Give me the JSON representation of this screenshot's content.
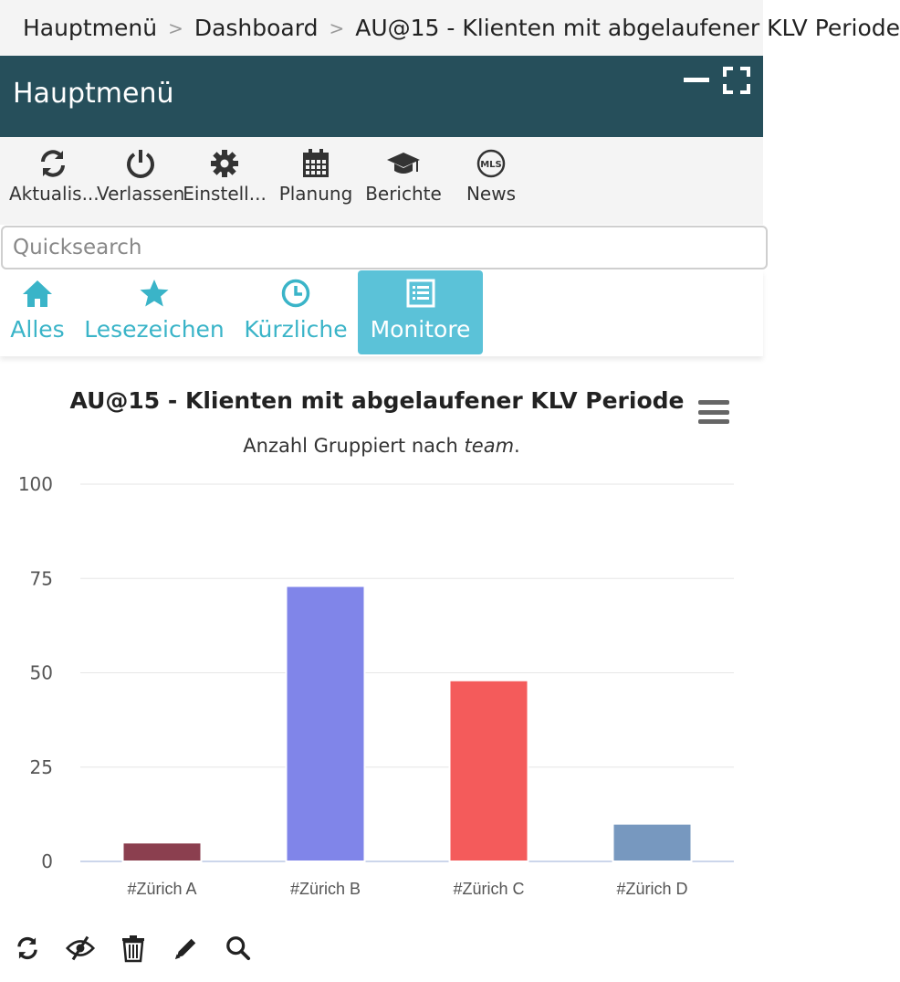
{
  "breadcrumb": {
    "items": [
      "Hauptmenü",
      "Dashboard",
      "AU@15 - Klienten mit abgelaufener KLV Periode"
    ],
    "separator": ">"
  },
  "header": {
    "title": "Hauptmenü"
  },
  "toolbar": {
    "items": [
      {
        "label": "Aktualis...",
        "icon": "refresh-icon"
      },
      {
        "label": "Verlassen",
        "icon": "power-icon"
      },
      {
        "label": "Einstell...",
        "icon": "gear-icon"
      },
      {
        "label": "Planung",
        "icon": "calendar-icon"
      },
      {
        "label": "Berichte",
        "icon": "graduation-cap-icon"
      },
      {
        "label": "News",
        "icon": "mls-news-icon"
      }
    ],
    "news_badge": "MLS"
  },
  "search": {
    "placeholder": "Quicksearch",
    "value": ""
  },
  "tabs": [
    {
      "label": "Alles",
      "icon": "home-icon",
      "active": false
    },
    {
      "label": "Lesezeichen",
      "icon": "star-icon",
      "active": false
    },
    {
      "label": "Kürzliche",
      "icon": "clock-icon",
      "active": false
    },
    {
      "label": "Monitore",
      "icon": "list-icon",
      "active": true
    }
  ],
  "colors": {
    "header_bg": "#264f5b",
    "accent": "#3ab4c8",
    "active_tab": "#5bc2d8"
  },
  "chart_data": {
    "type": "bar",
    "title": "AU@15 - Klienten mit abgelaufener KLV Periode",
    "subtitle_prefix": "Anzahl Gruppiert nach ",
    "subtitle_em": "team",
    "subtitle_suffix": ".",
    "categories": [
      "#Zürich A",
      "#Zürich B",
      "#Zürich C",
      "#Zürich  D"
    ],
    "values": [
      5,
      73,
      48,
      10
    ],
    "colors": [
      "#8b3f4f",
      "#8085e9",
      "#f45b5b",
      "#7798bf"
    ],
    "ylim": [
      0,
      100
    ],
    "yticks": [
      0,
      25,
      50,
      75,
      100
    ],
    "grid": true,
    "legend": "none"
  },
  "bottom_actions": [
    {
      "icon": "refresh-icon"
    },
    {
      "icon": "eye-slash-icon"
    },
    {
      "icon": "trash-icon"
    },
    {
      "icon": "pencil-icon"
    },
    {
      "icon": "search-icon"
    }
  ]
}
